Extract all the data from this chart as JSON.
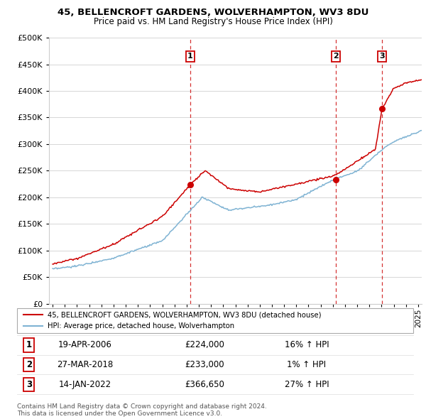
{
  "title": "45, BELLENCROFT GARDENS, WOLVERHAMPTON, WV3 8DU",
  "subtitle": "Price paid vs. HM Land Registry's House Price Index (HPI)",
  "legend_label_red": "45, BELLENCROFT GARDENS, WOLVERHAMPTON, WV3 8DU (detached house)",
  "legend_label_blue": "HPI: Average price, detached house, Wolverhampton",
  "sale_points": [
    {
      "label": "1",
      "date": 2006.3,
      "price": 224000
    },
    {
      "label": "2",
      "date": 2018.24,
      "price": 233000
    },
    {
      "label": "3",
      "date": 2022.04,
      "price": 366650
    }
  ],
  "table_rows": [
    [
      "1",
      "19-APR-2006",
      "£224,000",
      "16% ↑ HPI"
    ],
    [
      "2",
      "27-MAR-2018",
      "£233,000",
      "1% ↑ HPI"
    ],
    [
      "3",
      "14-JAN-2022",
      "£366,650",
      "27% ↑ HPI"
    ]
  ],
  "footnote": "Contains HM Land Registry data © Crown copyright and database right 2024.\nThis data is licensed under the Open Government Licence v3.0.",
  "red_color": "#cc0000",
  "blue_color": "#7fb3d3",
  "ylim": [
    0,
    500000
  ],
  "yticks": [
    0,
    50000,
    100000,
    150000,
    200000,
    250000,
    300000,
    350000,
    400000,
    450000,
    500000
  ],
  "xmin": 1994.7,
  "xmax": 2025.3
}
